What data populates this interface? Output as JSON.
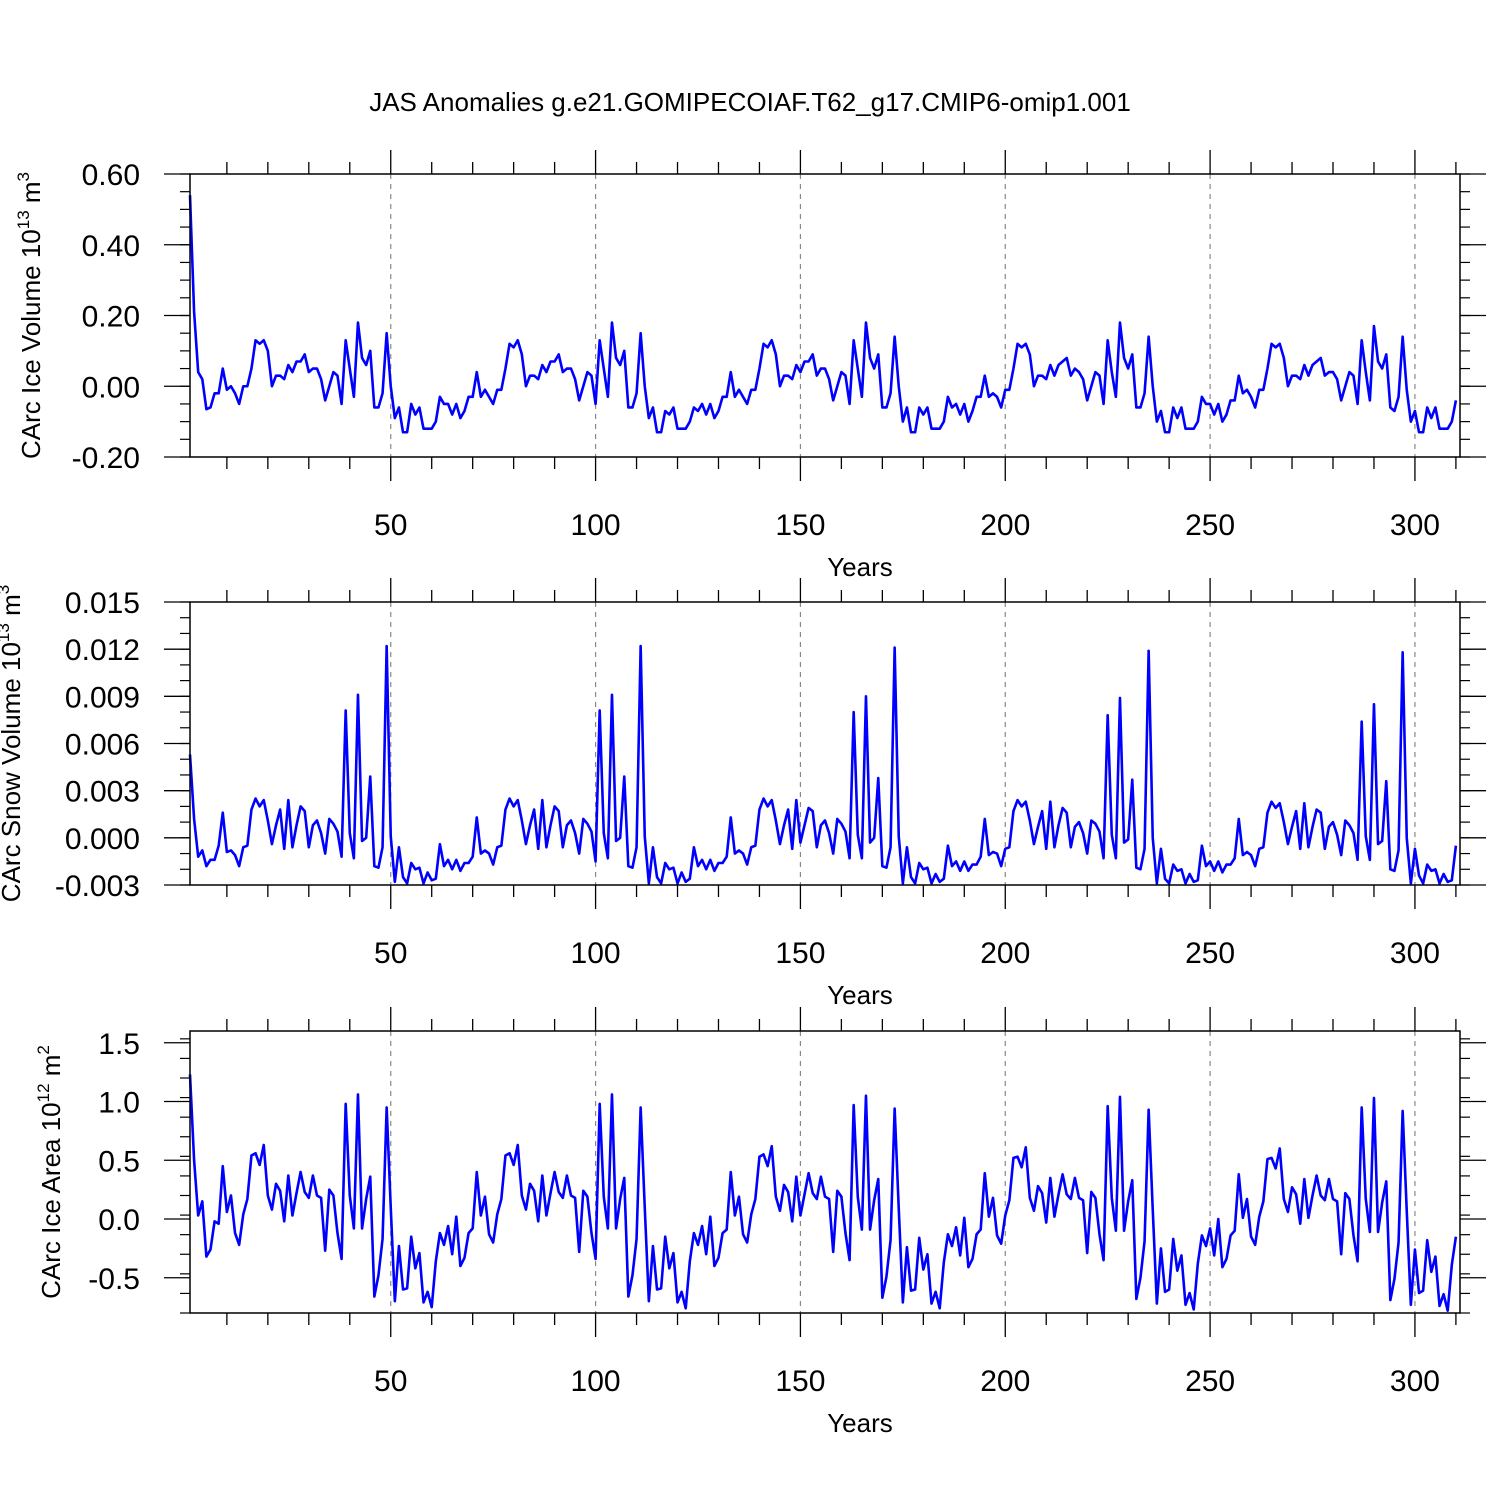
{
  "title": "JAS Anomalies g.e21.GOMIPECOIAF.T62_g17.CMIP6-omip1.001",
  "line_color": "#0000ff",
  "chart_data": [
    {
      "type": "line",
      "ylabel_prefix": "CArc Ice Volume 10",
      "ylabel_exp": "13",
      "ylabel_unit": " m",
      "ylabel_unit_exp": "3",
      "xlabel": "Years",
      "xlim": [
        1,
        311
      ],
      "ylim": [
        -0.2,
        0.6
      ],
      "xticks": [
        "50",
        "100",
        "150",
        "200",
        "250",
        "300"
      ],
      "xtick_values": [
        50,
        100,
        150,
        200,
        250,
        300
      ],
      "ytick_labels": [
        "-0.20",
        "0.00",
        "0.20",
        "0.40",
        "0.60"
      ],
      "ytick_values": [
        -0.2,
        0.0,
        0.2,
        0.4,
        0.6
      ],
      "grid": "vertical dashed at major x ticks",
      "x_start": 1,
      "values": [
        0.54,
        0.21,
        0.04,
        0.02,
        -0.065,
        -0.06,
        -0.02,
        -0.02,
        0.05,
        -0.01,
        0.0,
        -0.02,
        -0.05,
        0.0,
        0.0,
        0.05,
        0.13,
        0.12,
        0.13,
        0.1,
        0.0,
        0.03,
        0.03,
        0.02,
        0.06,
        0.04,
        0.07,
        0.07,
        0.09,
        0.04,
        0.05,
        0.05,
        0.02,
        -0.04,
        0.0,
        0.04,
        0.03,
        -0.05,
        0.13,
        0.05,
        -0.03,
        0.18,
        0.08,
        0.06,
        0.1,
        -0.06,
        -0.06,
        -0.02,
        0.15,
        0.0,
        -0.09,
        -0.06,
        -0.13,
        -0.13,
        -0.05,
        -0.08,
        -0.06,
        -0.12,
        -0.12,
        -0.12,
        -0.1,
        -0.03,
        -0.05,
        -0.05,
        -0.08,
        -0.05,
        -0.09,
        -0.07,
        -0.03,
        -0.03,
        0.04,
        -0.03,
        -0.01,
        -0.03,
        -0.05,
        -0.01,
        -0.01,
        0.05,
        0.12,
        0.11,
        0.13,
        0.09,
        0.0,
        0.03,
        0.03,
        0.02,
        0.06,
        0.04,
        0.07,
        0.07,
        0.09,
        0.04,
        0.05,
        0.05,
        0.02,
        -0.04,
        0.0,
        0.04,
        0.03,
        -0.05,
        0.13,
        0.05,
        -0.03,
        0.18,
        0.08,
        0.06,
        0.1,
        -0.06,
        -0.06,
        -0.02,
        0.15,
        0.0,
        -0.09,
        -0.06,
        -0.13,
        -0.13,
        -0.07,
        -0.08,
        -0.06,
        -0.12,
        -0.12,
        -0.12,
        -0.1,
        -0.06,
        -0.07,
        -0.05,
        -0.08,
        -0.05,
        -0.09,
        -0.07,
        -0.03,
        -0.03,
        0.04,
        -0.03,
        -0.01,
        -0.03,
        -0.05,
        -0.01,
        -0.01,
        0.05,
        0.12,
        0.11,
        0.13,
        0.09,
        0.0,
        0.03,
        0.03,
        0.02,
        0.06,
        0.04,
        0.07,
        0.07,
        0.09,
        0.03,
        0.05,
        0.05,
        0.02,
        -0.04,
        0.0,
        0.04,
        0.03,
        -0.05,
        0.13,
        0.05,
        -0.03,
        0.18,
        0.08,
        0.05,
        0.09,
        -0.06,
        -0.06,
        -0.02,
        0.14,
        0.0,
        -0.1,
        -0.06,
        -0.13,
        -0.13,
        -0.06,
        -0.08,
        -0.06,
        -0.12,
        -0.12,
        -0.12,
        -0.1,
        -0.03,
        -0.06,
        -0.05,
        -0.08,
        -0.05,
        -0.1,
        -0.07,
        -0.03,
        -0.03,
        0.03,
        -0.03,
        -0.02,
        -0.03,
        -0.06,
        -0.01,
        -0.01,
        0.05,
        0.12,
        0.11,
        0.12,
        0.09,
        0.0,
        0.03,
        0.03,
        0.02,
        0.06,
        0.03,
        0.06,
        0.07,
        0.08,
        0.03,
        0.05,
        0.04,
        0.02,
        -0.04,
        0.0,
        0.04,
        0.03,
        -0.05,
        0.13,
        0.04,
        -0.03,
        0.18,
        0.08,
        0.05,
        0.09,
        -0.06,
        -0.06,
        -0.02,
        0.14,
        0.0,
        -0.1,
        -0.07,
        -0.13,
        -0.13,
        -0.06,
        -0.09,
        -0.06,
        -0.12,
        -0.12,
        -0.12,
        -0.1,
        -0.03,
        -0.05,
        -0.05,
        -0.08,
        -0.05,
        -0.1,
        -0.08,
        -0.04,
        -0.04,
        0.03,
        -0.02,
        -0.01,
        -0.03,
        -0.06,
        -0.01,
        -0.01,
        0.05,
        0.12,
        0.11,
        0.12,
        0.08,
        0.0,
        0.03,
        0.03,
        0.02,
        0.06,
        0.03,
        0.06,
        0.07,
        0.08,
        0.03,
        0.04,
        0.04,
        0.02,
        -0.04,
        0.0,
        0.04,
        0.03,
        -0.05,
        0.13,
        0.04,
        -0.04,
        0.17,
        0.07,
        0.05,
        0.09,
        -0.06,
        -0.07,
        -0.03,
        0.14,
        -0.01,
        -0.1,
        -0.07,
        -0.13,
        -0.13,
        -0.06,
        -0.09,
        -0.06,
        -0.12,
        -0.12,
        -0.12,
        -0.1,
        -0.04
      ]
    },
    {
      "type": "line",
      "ylabel_prefix": "CArc Snow Volume 10",
      "ylabel_exp": "13",
      "ylabel_unit": " m",
      "ylabel_unit_exp": "3",
      "xlabel": "Years",
      "xlim": [
        1,
        311
      ],
      "ylim": [
        -0.003,
        0.015
      ],
      "xticks": [
        "50",
        "100",
        "150",
        "200",
        "250",
        "300"
      ],
      "xtick_values": [
        50,
        100,
        150,
        200,
        250,
        300
      ],
      "ytick_labels": [
        "-0.003",
        "0.000",
        "0.003",
        "0.006",
        "0.009",
        "0.012",
        "0.015"
      ],
      "ytick_values": [
        -0.003,
        0.0,
        0.003,
        0.006,
        0.009,
        0.012,
        0.015
      ],
      "grid": "vertical dashed at major x ticks",
      "x_start": 1,
      "values": [
        0.0053,
        0.0012,
        -0.0012,
        -0.0008,
        -0.0018,
        -0.0014,
        -0.0014,
        -0.0005,
        0.0016,
        -0.0009,
        -0.0008,
        -0.0011,
        -0.0018,
        -0.0006,
        -0.0005,
        0.0018,
        0.0025,
        0.002,
        0.0024,
        0.0011,
        -0.0004,
        0.0008,
        0.0018,
        -0.0007,
        0.0024,
        -0.0006,
        0.0008,
        0.002,
        0.0017,
        -0.0006,
        0.0008,
        0.0011,
        0.0003,
        -0.001,
        0.0012,
        0.0009,
        0.0004,
        -0.0012,
        0.0081,
        0.0003,
        -0.0013,
        0.0091,
        -0.0002,
        0.0,
        0.0039,
        -0.0018,
        -0.0019,
        -0.0006,
        0.0122,
        0.0001,
        -0.0028,
        -0.0006,
        -0.0025,
        -0.0029,
        -0.0016,
        -0.002,
        -0.0019,
        -0.0029,
        -0.0022,
        -0.0027,
        -0.0026,
        -0.0004,
        -0.0018,
        -0.0014,
        -0.002,
        -0.0014,
        -0.0021,
        -0.0016,
        -0.0016,
        -0.0012,
        0.0013,
        -0.001,
        -0.0008,
        -0.001,
        -0.0017,
        -0.0006,
        -0.0005,
        0.0018,
        0.0025,
        0.002,
        0.0024,
        0.0011,
        -0.0004,
        0.0008,
        0.0018,
        -0.0007,
        0.0024,
        -0.0006,
        0.0008,
        0.002,
        0.0017,
        -0.0006,
        0.0008,
        0.0011,
        0.0003,
        -0.001,
        0.0012,
        0.0009,
        0.0004,
        -0.0015,
        0.0081,
        0.0003,
        -0.0013,
        0.0091,
        -0.0002,
        0.0,
        0.0039,
        -0.0018,
        -0.0019,
        -0.0006,
        0.0122,
        0.0001,
        -0.0029,
        -0.0006,
        -0.0025,
        -0.0029,
        -0.0016,
        -0.002,
        -0.0019,
        -0.0029,
        -0.0022,
        -0.0028,
        -0.0026,
        -0.0006,
        -0.0018,
        -0.0014,
        -0.002,
        -0.0014,
        -0.0021,
        -0.0016,
        -0.0016,
        -0.0012,
        0.0013,
        -0.001,
        -0.0008,
        -0.001,
        -0.0017,
        -0.0006,
        -0.0005,
        0.0018,
        0.0025,
        0.002,
        0.0024,
        0.0011,
        -0.0004,
        0.0008,
        0.0018,
        -0.0007,
        0.0024,
        -0.0003,
        0.0008,
        0.0019,
        0.0017,
        -0.0006,
        0.0008,
        0.0011,
        0.0003,
        -0.001,
        0.0012,
        0.0009,
        0.0004,
        -0.0013,
        0.008,
        0.0002,
        -0.0013,
        0.009,
        -0.0003,
        0.0,
        0.0038,
        -0.0018,
        -0.0019,
        -0.0006,
        0.0121,
        0.0001,
        -0.0029,
        -0.0006,
        -0.0025,
        -0.0029,
        -0.0016,
        -0.002,
        -0.0019,
        -0.0029,
        -0.0023,
        -0.0028,
        -0.0026,
        -0.0005,
        -0.0018,
        -0.0015,
        -0.0021,
        -0.0015,
        -0.0021,
        -0.0017,
        -0.0017,
        -0.0012,
        0.0012,
        -0.0011,
        -0.0009,
        -0.001,
        -0.0018,
        -0.0007,
        -0.0006,
        0.0017,
        0.0024,
        0.002,
        0.0023,
        0.0011,
        -0.0004,
        0.0007,
        0.0017,
        -0.0007,
        0.0023,
        -0.0006,
        0.0008,
        0.0019,
        0.0016,
        -0.0006,
        0.0007,
        0.001,
        0.0003,
        -0.001,
        0.0011,
        0.0009,
        0.0004,
        -0.0013,
        0.0078,
        0.0002,
        -0.0013,
        0.0089,
        -0.0003,
        -0.0001,
        0.0037,
        -0.0019,
        -0.002,
        -0.0007,
        0.0119,
        0.0,
        -0.0029,
        -0.0007,
        -0.0026,
        -0.0029,
        -0.0017,
        -0.0021,
        -0.002,
        -0.0029,
        -0.0023,
        -0.0028,
        -0.0027,
        -0.0005,
        -0.0018,
        -0.0015,
        -0.0021,
        -0.0015,
        -0.0022,
        -0.0017,
        -0.0017,
        -0.0013,
        0.0012,
        -0.0011,
        -0.0009,
        -0.0011,
        -0.0018,
        -0.0007,
        -0.0006,
        0.0016,
        0.0023,
        0.0019,
        0.0022,
        0.001,
        -0.0004,
        0.0007,
        0.0017,
        -0.0007,
        0.0022,
        -0.0006,
        0.0007,
        0.0018,
        0.0016,
        -0.0007,
        0.0007,
        0.001,
        0.0002,
        -0.0011,
        0.0011,
        0.0008,
        0.0003,
        -0.0014,
        0.0074,
        0.0001,
        -0.0014,
        0.0085,
        -0.0004,
        -0.0002,
        0.0036,
        -0.002,
        -0.0021,
        -0.0008,
        0.0118,
        0.0,
        -0.0029,
        -0.0007,
        -0.0024,
        -0.0029,
        -0.0017,
        -0.0021,
        -0.002,
        -0.0029,
        -0.0023,
        -0.0028,
        -0.0027,
        -0.0005
      ]
    },
    {
      "type": "line",
      "ylabel_prefix": "CArc Ice Area 10",
      "ylabel_exp": "12",
      "ylabel_unit": " m",
      "ylabel_unit_exp": "2",
      "xlabel": "Years",
      "xlim": [
        1,
        311
      ],
      "ylim": [
        -0.8,
        1.6
      ],
      "xticks": [
        "50",
        "100",
        "150",
        "200",
        "250",
        "300"
      ],
      "xtick_values": [
        50,
        100,
        150,
        200,
        250,
        300
      ],
      "ytick_labels": [
        "-0.5",
        "0.0",
        "0.5",
        "1.0",
        "1.5"
      ],
      "ytick_values": [
        -0.5,
        0.0,
        0.5,
        1.0,
        1.5
      ],
      "grid": "vertical dashed at major x ticks",
      "x_start": 1,
      "values": [
        1.23,
        0.5,
        0.03,
        0.15,
        -0.32,
        -0.26,
        -0.02,
        -0.04,
        0.45,
        0.06,
        0.2,
        -0.12,
        -0.22,
        0.04,
        0.17,
        0.54,
        0.56,
        0.46,
        0.63,
        0.2,
        0.08,
        0.3,
        0.24,
        -0.02,
        0.37,
        0.03,
        0.22,
        0.4,
        0.23,
        0.18,
        0.37,
        0.2,
        0.18,
        -0.27,
        0.25,
        0.2,
        -0.12,
        -0.34,
        0.98,
        0.2,
        -0.08,
        1.06,
        -0.08,
        0.17,
        0.36,
        -0.66,
        -0.48,
        -0.17,
        0.95,
        0.1,
        -0.7,
        -0.23,
        -0.6,
        -0.59,
        -0.15,
        -0.42,
        -0.29,
        -0.71,
        -0.62,
        -0.75,
        -0.36,
        -0.12,
        -0.22,
        -0.06,
        -0.3,
        0.02,
        -0.4,
        -0.33,
        -0.12,
        -0.08,
        0.4,
        0.03,
        0.19,
        -0.13,
        -0.2,
        0.04,
        0.17,
        0.54,
        0.56,
        0.46,
        0.63,
        0.2,
        0.08,
        0.3,
        0.24,
        -0.02,
        0.37,
        0.03,
        0.22,
        0.4,
        0.23,
        0.18,
        0.37,
        0.2,
        0.18,
        -0.28,
        0.24,
        0.19,
        -0.12,
        -0.34,
        0.98,
        0.19,
        -0.08,
        1.06,
        -0.08,
        0.17,
        0.35,
        -0.66,
        -0.48,
        -0.17,
        0.95,
        0.1,
        -0.7,
        -0.23,
        -0.6,
        -0.59,
        -0.15,
        -0.42,
        -0.29,
        -0.71,
        -0.62,
        -0.76,
        -0.36,
        -0.12,
        -0.22,
        -0.06,
        -0.3,
        0.02,
        -0.4,
        -0.33,
        -0.12,
        -0.09,
        0.4,
        0.03,
        0.19,
        -0.13,
        -0.2,
        0.04,
        0.17,
        0.53,
        0.55,
        0.45,
        0.62,
        0.19,
        0.07,
        0.29,
        0.23,
        -0.02,
        0.36,
        0.03,
        0.21,
        0.39,
        0.22,
        0.17,
        0.36,
        0.19,
        0.17,
        -0.28,
        0.24,
        0.19,
        -0.12,
        -0.35,
        0.97,
        0.19,
        -0.09,
        1.05,
        -0.09,
        0.16,
        0.34,
        -0.67,
        -0.49,
        -0.18,
        0.94,
        0.09,
        -0.71,
        -0.24,
        -0.61,
        -0.6,
        -0.16,
        -0.43,
        -0.3,
        -0.72,
        -0.62,
        -0.76,
        -0.37,
        -0.13,
        -0.23,
        -0.07,
        -0.31,
        0.01,
        -0.41,
        -0.34,
        -0.13,
        -0.09,
        0.39,
        0.02,
        0.18,
        -0.14,
        -0.21,
        0.03,
        0.16,
        0.52,
        0.53,
        0.44,
        0.61,
        0.18,
        0.07,
        0.28,
        0.22,
        -0.03,
        0.35,
        0.02,
        0.21,
        0.38,
        0.21,
        0.17,
        0.35,
        0.18,
        0.16,
        -0.29,
        0.23,
        0.18,
        -0.13,
        -0.35,
        0.96,
        0.18,
        -0.1,
        1.04,
        -0.1,
        0.15,
        0.33,
        -0.68,
        -0.5,
        -0.19,
        0.93,
        0.08,
        -0.72,
        -0.25,
        -0.62,
        -0.6,
        -0.17,
        -0.44,
        -0.31,
        -0.73,
        -0.63,
        -0.77,
        -0.38,
        -0.14,
        -0.23,
        -0.08,
        -0.31,
        0.0,
        -0.41,
        -0.34,
        -0.14,
        -0.1,
        0.38,
        0.01,
        0.17,
        -0.15,
        -0.22,
        0.02,
        0.15,
        0.51,
        0.52,
        0.43,
        0.6,
        0.17,
        0.06,
        0.27,
        0.21,
        -0.04,
        0.34,
        0.01,
        0.2,
        0.37,
        0.2,
        0.16,
        0.34,
        0.17,
        0.15,
        -0.3,
        0.22,
        0.17,
        -0.14,
        -0.36,
        0.95,
        0.17,
        -0.11,
        1.03,
        -0.11,
        0.14,
        0.32,
        -0.69,
        -0.51,
        -0.2,
        0.92,
        0.07,
        -0.73,
        -0.26,
        -0.63,
        -0.61,
        -0.18,
        -0.45,
        -0.32,
        -0.74,
        -0.64,
        -0.78,
        -0.39,
        -0.15
      ]
    }
  ]
}
